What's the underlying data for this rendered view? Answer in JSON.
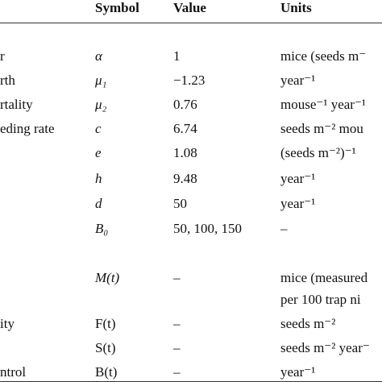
{
  "table": {
    "header": [
      "Symbol",
      "Value",
      "Units"
    ],
    "rows": [
      [
        "r",
        "α",
        "1",
        [
          "mice (seeds m⁻"
        ]
      ],
      [
        "rth",
        "μ₁",
        "−1.23",
        [
          "year⁻¹"
        ]
      ],
      [
        "rtality",
        "μ₂",
        "0.76",
        [
          "mouse⁻¹ year⁻¹"
        ]
      ],
      [
        "eding rate",
        "c",
        "6.74",
        [
          "seeds m⁻² mou"
        ]
      ],
      [
        null,
        "e",
        "1.08",
        [
          "(seeds m⁻²)⁻¹"
        ]
      ],
      [
        null,
        "h",
        "9.48",
        [
          "year⁻¹"
        ]
      ],
      [
        null,
        "d",
        "50",
        [
          "year⁻¹"
        ]
      ],
      [
        null,
        "B₀",
        "50, 100, 150",
        [
          "–"
        ]
      ],
      [
        null,
        "M(t)",
        "–",
        [
          "mice (measured",
          "per 100 trap ni"
        ]
      ],
      [
        "ity",
        "F(t)",
        "–",
        [
          "seeds m⁻²"
        ]
      ],
      [
        null,
        "S(t)",
        "–",
        [
          "seeds m⁻² year⁻"
        ]
      ],
      [
        "ntrol",
        "B(t)",
        "–",
        [
          "year⁻¹"
        ]
      ]
    ]
  }
}
